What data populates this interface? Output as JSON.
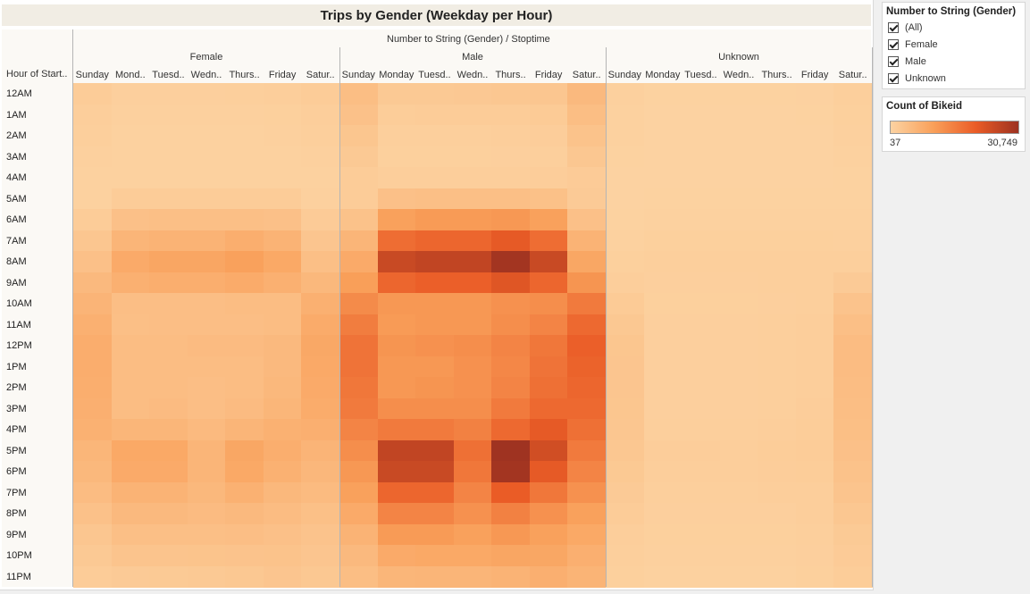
{
  "title": "Trips by Gender (Weekday per Hour)",
  "column_header": "Number to String (Gender) / Stoptime",
  "row_header": "Hour of Start..",
  "genders": [
    "Female",
    "Male",
    "Unknown"
  ],
  "day_labels": [
    "Sunday",
    "Mond..",
    "Tuesd..",
    "Wedn..",
    "Thurs..",
    "Friday",
    "Satur..",
    "Sunday",
    "Monday",
    "Tuesd..",
    "Wedn..",
    "Thurs..",
    "Friday",
    "Satur..",
    "Sunday",
    "Monday",
    "Tuesd..",
    "Wedn..",
    "Thurs..",
    "Friday",
    "Satur.."
  ],
  "filter": {
    "title": "Number to String (Gender)",
    "options": [
      "(All)",
      "Female",
      "Male",
      "Unknown"
    ]
  },
  "legend": {
    "title": "Count of Bikeid",
    "min_label": "37",
    "max_label": "30,749",
    "colors": [
      "#fcd3a2",
      "#f9a05a",
      "#ea5c26",
      "#9d3221"
    ]
  },
  "chart_data": {
    "type": "heatmap",
    "title": "Trips by Gender (Weekday per Hour)",
    "xlabel": "Number to String (Gender) / Stoptime",
    "ylabel": "Hour of Start..",
    "color_range": [
      37,
      30749
    ],
    "hours": [
      "12AM",
      "1AM",
      "2AM",
      "3AM",
      "4AM",
      "5AM",
      "6AM",
      "7AM",
      "8AM",
      "9AM",
      "10AM",
      "11AM",
      "12PM",
      "1PM",
      "2PM",
      "3PM",
      "4PM",
      "5PM",
      "6PM",
      "7PM",
      "8PM",
      "9PM",
      "10PM",
      "11PM"
    ],
    "days": [
      "Sunday",
      "Monday",
      "Tuesday",
      "Wednesday",
      "Thursday",
      "Friday",
      "Saturday"
    ],
    "series": [
      {
        "name": "Female",
        "values": [
          [
            1400,
            800,
            800,
            800,
            900,
            1000,
            1500
          ],
          [
            1100,
            600,
            600,
            600,
            650,
            700,
            1100
          ],
          [
            900,
            500,
            500,
            500,
            500,
            550,
            900
          ],
          [
            600,
            400,
            400,
            400,
            400,
            450,
            650
          ],
          [
            450,
            450,
            450,
            450,
            450,
            500,
            450
          ],
          [
            500,
            1400,
            1500,
            1500,
            1500,
            1400,
            600
          ],
          [
            1500,
            3800,
            4000,
            4000,
            4000,
            3800,
            1600
          ],
          [
            2600,
            6000,
            6500,
            6500,
            7500,
            6500,
            2800
          ],
          [
            3800,
            8200,
            9000,
            9000,
            10000,
            8500,
            4000
          ],
          [
            5200,
            7000,
            7500,
            7500,
            8000,
            7000,
            5500
          ],
          [
            6200,
            4200,
            4200,
            4200,
            4500,
            4500,
            7000
          ],
          [
            7000,
            4000,
            4200,
            4200,
            4200,
            4500,
            8000
          ],
          [
            7600,
            4500,
            4500,
            4800,
            4800,
            5200,
            8600
          ],
          [
            7600,
            4500,
            4500,
            4500,
            4500,
            5200,
            8400
          ],
          [
            7400,
            4500,
            4500,
            4200,
            4500,
            5500,
            8200
          ],
          [
            7200,
            4500,
            4800,
            4200,
            4800,
            5800,
            7800
          ],
          [
            6800,
            5800,
            5800,
            5000,
            6000,
            6800,
            7200
          ],
          [
            5800,
            8500,
            8500,
            6000,
            8800,
            7500,
            6200
          ],
          [
            5500,
            8200,
            8200,
            6000,
            8500,
            6800,
            5600
          ],
          [
            4600,
            6500,
            6500,
            5500,
            6800,
            5500,
            4900
          ],
          [
            3600,
            5200,
            5200,
            4800,
            5200,
            4600,
            3900
          ],
          [
            2600,
            4000,
            4000,
            4000,
            4200,
            3800,
            3200
          ],
          [
            2000,
            3000,
            3000,
            3100,
            3200,
            3300,
            2800
          ],
          [
            1500,
            1800,
            1900,
            2000,
            2300,
            2800,
            2300
          ]
        ]
      },
      {
        "name": "Male",
        "values": [
          [
            4300,
            2000,
            2000,
            2200,
            2400,
            2600,
            5200
          ],
          [
            3600,
            1300,
            1400,
            1400,
            1500,
            1700,
            4300
          ],
          [
            2700,
            900,
            900,
            900,
            1000,
            1200,
            3300
          ],
          [
            2000,
            700,
            700,
            700,
            800,
            900,
            2400
          ],
          [
            1400,
            1100,
            1100,
            1100,
            1100,
            1200,
            1600
          ],
          [
            1500,
            3800,
            4000,
            4000,
            4000,
            3700,
            1800
          ],
          [
            3500,
            10000,
            11000,
            11000,
            11500,
            10000,
            3800
          ],
          [
            6000,
            18000,
            19000,
            19000,
            21000,
            18000,
            6500
          ],
          [
            8200,
            25000,
            26000,
            26000,
            30000,
            25000,
            8800
          ],
          [
            10500,
            19000,
            20000,
            20000,
            22000,
            19000,
            12000
          ],
          [
            13500,
            11500,
            11500,
            11500,
            12500,
            13000,
            16000
          ],
          [
            15500,
            11000,
            11500,
            11500,
            13000,
            14500,
            18500
          ],
          [
            17000,
            12000,
            12500,
            13000,
            14500,
            16500,
            20000
          ],
          [
            17000,
            11500,
            11500,
            12500,
            14000,
            17000,
            19500
          ],
          [
            16500,
            11500,
            12000,
            12500,
            14500,
            17500,
            19000
          ],
          [
            16000,
            13000,
            13000,
            13000,
            16000,
            18500,
            18500
          ],
          [
            14500,
            16000,
            16000,
            15000,
            18500,
            21000,
            17500
          ],
          [
            13000,
            26000,
            26000,
            17500,
            30500,
            24000,
            16000
          ],
          [
            11500,
            25000,
            25000,
            16500,
            30000,
            21000,
            14500
          ],
          [
            10000,
            19000,
            19000,
            14500,
            20500,
            16500,
            12500
          ],
          [
            8200,
            14500,
            14500,
            12500,
            15000,
            12500,
            10000
          ],
          [
            6500,
            11000,
            11000,
            10000,
            11500,
            10000,
            8500
          ],
          [
            5200,
            8200,
            8500,
            8500,
            9000,
            8800,
            7200
          ],
          [
            4300,
            5800,
            6000,
            6000,
            6500,
            7200,
            6300
          ]
        ]
      },
      {
        "name": "Unknown",
        "values": [
          [
            600,
            300,
            300,
            300,
            300,
            350,
            900
          ],
          [
            500,
            250,
            250,
            250,
            250,
            300,
            700
          ],
          [
            400,
            200,
            200,
            200,
            200,
            250,
            550
          ],
          [
            300,
            150,
            150,
            150,
            150,
            200,
            450
          ],
          [
            200,
            200,
            200,
            200,
            200,
            200,
            300
          ],
          [
            200,
            300,
            300,
            300,
            300,
            300,
            300
          ],
          [
            300,
            500,
            500,
            500,
            500,
            500,
            400
          ],
          [
            500,
            700,
            700,
            700,
            700,
            700,
            600
          ],
          [
            700,
            900,
            900,
            900,
            900,
            900,
            900
          ],
          [
            1100,
            800,
            800,
            800,
            900,
            900,
            1800
          ],
          [
            1700,
            700,
            700,
            700,
            800,
            900,
            3200
          ],
          [
            2300,
            800,
            800,
            800,
            900,
            1000,
            4000
          ],
          [
            2700,
            800,
            800,
            800,
            900,
            1100,
            4600
          ],
          [
            2800,
            800,
            800,
            800,
            900,
            1100,
            4600
          ],
          [
            2800,
            800,
            800,
            800,
            900,
            1100,
            4500
          ],
          [
            2700,
            800,
            800,
            800,
            900,
            1200,
            4300
          ],
          [
            2600,
            900,
            900,
            900,
            1000,
            1300,
            4100
          ],
          [
            2400,
            1200,
            1200,
            1100,
            1300,
            1400,
            3800
          ],
          [
            2100,
            1100,
            1100,
            1000,
            1200,
            1300,
            3500
          ],
          [
            1800,
            900,
            900,
            900,
            1000,
            1100,
            3000
          ],
          [
            1400,
            800,
            800,
            800,
            800,
            1000,
            2400
          ],
          [
            1100,
            700,
            700,
            700,
            700,
            900,
            1900
          ],
          [
            900,
            600,
            600,
            600,
            600,
            800,
            1600
          ],
          [
            700,
            500,
            500,
            500,
            500,
            700,
            1300
          ]
        ]
      }
    ]
  }
}
